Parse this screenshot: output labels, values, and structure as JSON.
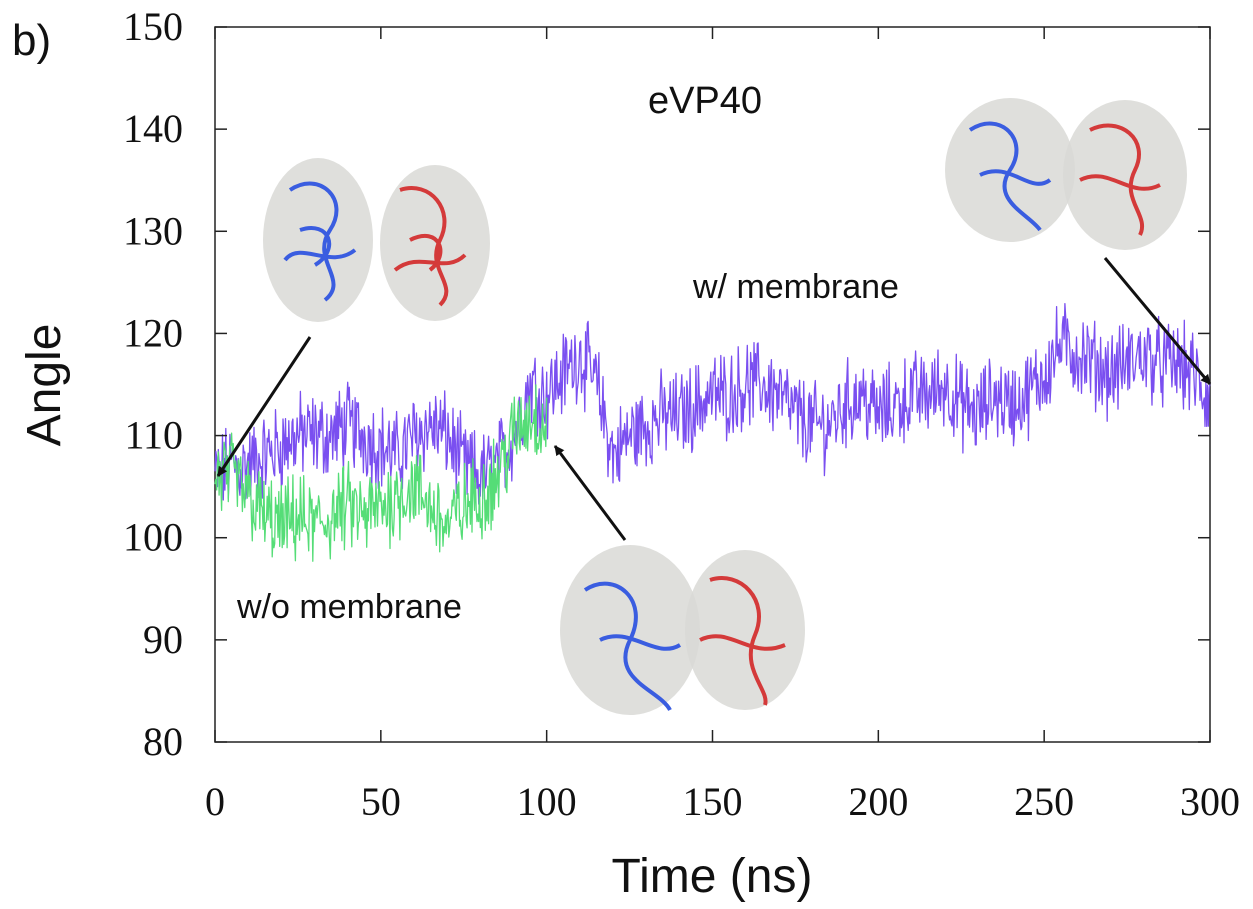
{
  "chart_data": {
    "type": "line",
    "panel_label": "b)",
    "title": "eVP40",
    "xlabel": "Time (ns)",
    "ylabel": "Angle",
    "xlim": [
      0,
      300
    ],
    "ylim": [
      80,
      150
    ],
    "xticks": [
      "0",
      "50",
      "100",
      "150",
      "200",
      "250",
      "300"
    ],
    "yticks": [
      "80",
      "90",
      "100",
      "110",
      "120",
      "130",
      "140",
      "150"
    ],
    "grid": false,
    "legend": "none",
    "series": [
      {
        "name": "w/ membrane",
        "color": "#7a4ff0",
        "x": [
          0,
          5,
          10,
          15,
          20,
          25,
          30,
          35,
          40,
          45,
          50,
          55,
          60,
          65,
          70,
          75,
          80,
          85,
          90,
          95,
          100,
          105,
          110,
          115,
          120,
          125,
          130,
          135,
          140,
          145,
          150,
          155,
          160,
          165,
          170,
          175,
          180,
          185,
          190,
          195,
          200,
          205,
          210,
          215,
          220,
          225,
          230,
          235,
          240,
          245,
          250,
          255,
          260,
          265,
          270,
          275,
          280,
          285,
          290,
          295,
          300
        ],
        "y": [
          106,
          107,
          107,
          108,
          109,
          110,
          110,
          110,
          111,
          110,
          109,
          108,
          110,
          111,
          110,
          107,
          106,
          107,
          110,
          115,
          114,
          116,
          118,
          115,
          108,
          110,
          111,
          112,
          112,
          113,
          114,
          114,
          115,
          115,
          114,
          112,
          111,
          111,
          113,
          114,
          112,
          113,
          114,
          114,
          115,
          113,
          112,
          114,
          113,
          114,
          116,
          119,
          118,
          117,
          116,
          117,
          118,
          117,
          117,
          116,
          113
        ]
      },
      {
        "name": "w/o membrane",
        "color": "#55dd77",
        "x": [
          0,
          5,
          10,
          15,
          20,
          25,
          30,
          35,
          40,
          45,
          50,
          55,
          60,
          65,
          70,
          75,
          80,
          85,
          90,
          95,
          100
        ],
        "y": [
          106,
          106,
          104,
          102,
          101,
          102,
          101,
          102,
          103,
          102,
          103,
          104,
          105,
          103,
          101,
          103,
          104,
          106,
          110,
          112,
          111
        ]
      }
    ],
    "annotations": [
      {
        "text": "w/ membrane",
        "x": 189,
        "y": 124.5
      },
      {
        "text": "w/o membrane",
        "x": 56,
        "y": 93
      }
    ]
  }
}
